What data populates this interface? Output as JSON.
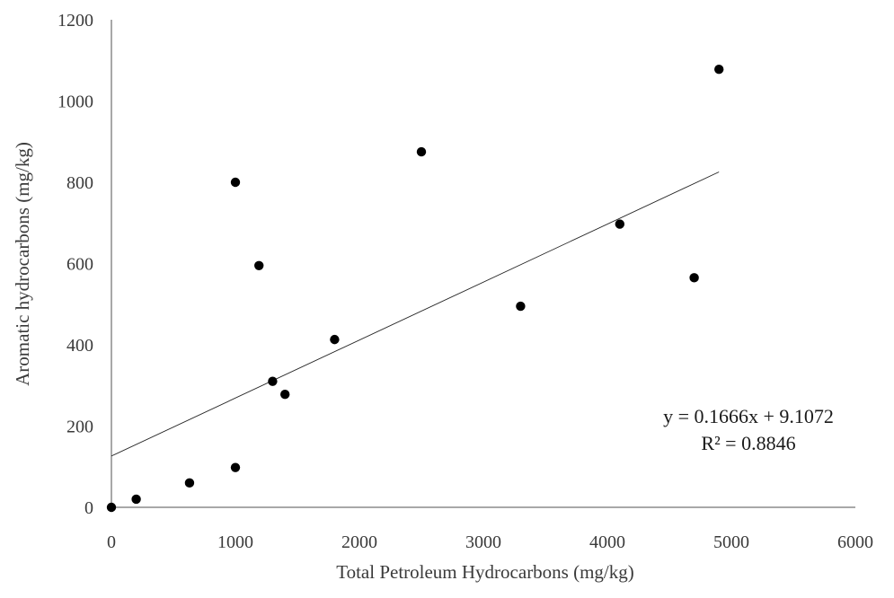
{
  "chart_data": {
    "type": "scatter",
    "title": "",
    "xlabel": "Total Petroleum Hydrocarbons (mg/kg)",
    "ylabel": "Aromatic hydrocarbons (mg/kg)",
    "xlim": [
      0,
      6000
    ],
    "ylim": [
      0,
      1200
    ],
    "x_ticks": [
      "0",
      "1000",
      "2000",
      "3000",
      "4000",
      "5000",
      "6000"
    ],
    "y_ticks": [
      "0",
      "200",
      "400",
      "600",
      "800",
      "1000",
      "1200"
    ],
    "grid": false,
    "legend": "none",
    "points": [
      {
        "x": 0,
        "y": 0
      },
      {
        "x": 200,
        "y": 20
      },
      {
        "x": 630,
        "y": 60
      },
      {
        "x": 1000,
        "y": 98
      },
      {
        "x": 1000,
        "y": 800
      },
      {
        "x": 1190,
        "y": 595
      },
      {
        "x": 1300,
        "y": 310
      },
      {
        "x": 1400,
        "y": 278
      },
      {
        "x": 1800,
        "y": 413
      },
      {
        "x": 2500,
        "y": 875
      },
      {
        "x": 3300,
        "y": 495
      },
      {
        "x": 4100,
        "y": 697
      },
      {
        "x": 4700,
        "y": 565
      },
      {
        "x": 4900,
        "y": 1078
      }
    ],
    "trendline": {
      "type": "linear",
      "slope": 0.1666,
      "intercept": 9.1072,
      "x_range": [
        0,
        4900
      ],
      "equation": "y = 0.1666x + 9.1072",
      "r_squared": "R² = 0.8846"
    },
    "colors": {
      "points": "#000000",
      "axis": "#8c8c8c",
      "trendline": "#222222"
    }
  }
}
